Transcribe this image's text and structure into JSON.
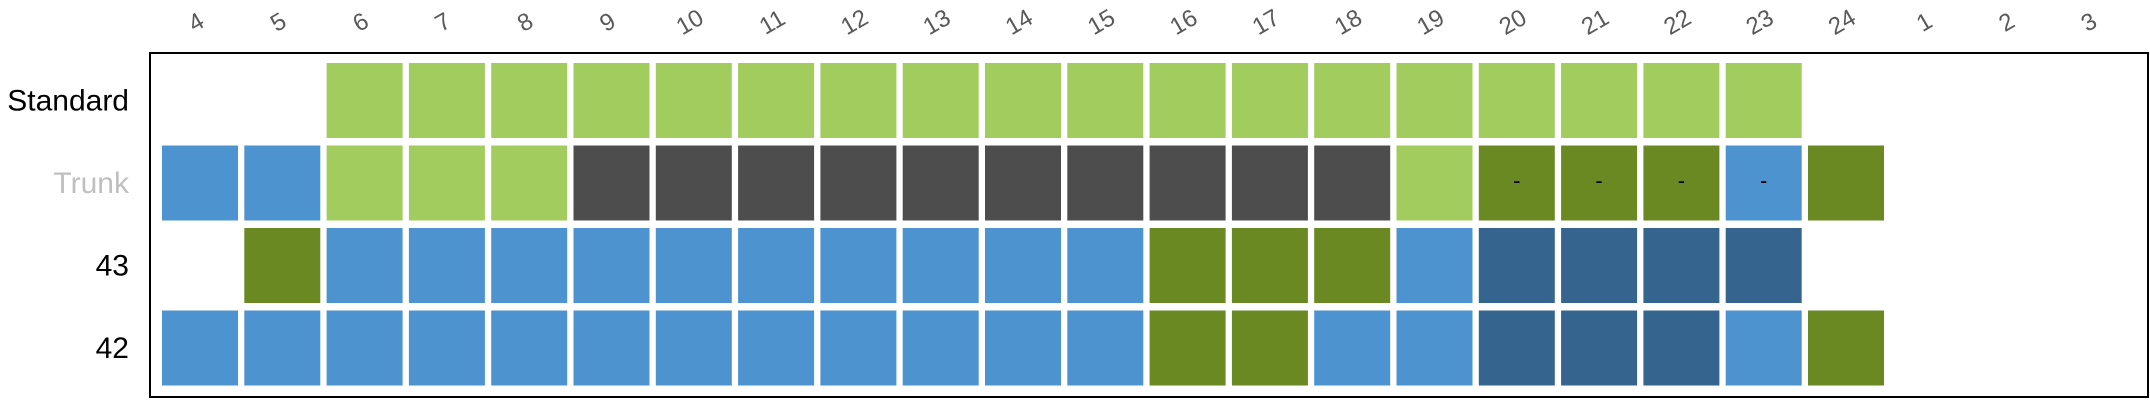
{
  "chart_data": {
    "type": "heatmap",
    "title": "",
    "xlabel": "",
    "ylabel": "",
    "grid": false,
    "legend": "none",
    "x_ticks": [
      "4",
      "5",
      "6",
      "7",
      "8",
      "9",
      "10",
      "11",
      "12",
      "13",
      "14",
      "15",
      "16",
      "17",
      "18",
      "19",
      "20",
      "21",
      "22",
      "23",
      "24",
      "1",
      "2",
      "3"
    ],
    "rows": [
      {
        "label": "Standard",
        "label_color": "#000000",
        "cells": [
          "",
          "",
          "L",
          "L",
          "L",
          "L",
          "L",
          "L",
          "L",
          "L",
          "L",
          "L",
          "L",
          "L",
          "L",
          "L",
          "L",
          "L",
          "L",
          "L",
          "",
          "",
          "",
          ""
        ],
        "cell_text": [
          "",
          "",
          "",
          "",
          "",
          "",
          "",
          "",
          "",
          "",
          "",
          "",
          "",
          "",
          "",
          "",
          "",
          "",
          "",
          "",
          "",
          "",
          "",
          ""
        ]
      },
      {
        "label": "Trunk",
        "label_color": "#bfbfbf",
        "cells": [
          "B",
          "B",
          "L",
          "L",
          "L",
          "K",
          "K",
          "K",
          "K",
          "K",
          "K",
          "K",
          "K",
          "K",
          "K",
          "L",
          "G",
          "G",
          "G",
          "B",
          "G",
          "",
          "",
          ""
        ],
        "cell_text": [
          "",
          "",
          "",
          "",
          "",
          "",
          "",
          "",
          "",
          "",
          "",
          "",
          "",
          "",
          "",
          "",
          "-",
          "-",
          "-",
          "-",
          "",
          "",
          "",
          ""
        ]
      },
      {
        "label": "43",
        "label_color": "#000000",
        "cells": [
          "",
          "G",
          "B",
          "B",
          "B",
          "B",
          "B",
          "B",
          "B",
          "B",
          "B",
          "B",
          "G",
          "G",
          "G",
          "B",
          "N",
          "N",
          "N",
          "N",
          "",
          "",
          "",
          ""
        ],
        "cell_text": [
          "",
          "",
          "",
          "",
          "",
          "",
          "",
          "",
          "",
          "",
          "",
          "",
          "",
          "",
          "",
          "",
          "",
          "",
          "",
          "",
          "",
          "",
          "",
          ""
        ]
      },
      {
        "label": "42",
        "label_color": "#000000",
        "cells": [
          "B",
          "B",
          "B",
          "B",
          "B",
          "B",
          "B",
          "B",
          "B",
          "B",
          "B",
          "B",
          "G",
          "G",
          "B",
          "B",
          "N",
          "N",
          "N",
          "B",
          "G",
          "",
          "",
          ""
        ],
        "cell_text": [
          "",
          "",
          "",
          "",
          "",
          "",
          "",
          "",
          "",
          "",
          "",
          "",
          "",
          "",
          "",
          "",
          "",
          "",
          "",
          "",
          "",
          "",
          "",
          ""
        ]
      }
    ],
    "colors": {
      "L": "#a2cc5e",
      "K": "#4d4d4d",
      "B": "#4d93d0",
      "G": "#6a8923",
      "N": "#35648e"
    },
    "tick_color": "#595959",
    "frame_color": "#000000"
  }
}
